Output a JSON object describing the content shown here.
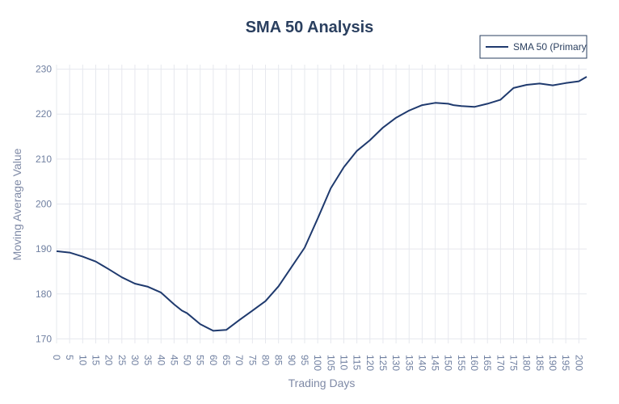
{
  "chart_data": {
    "type": "line",
    "title": "SMA 50 Analysis",
    "xlabel": "Trading Days",
    "ylabel": "Moving Average Value",
    "xlim": [
      0,
      203
    ],
    "ylim": [
      169,
      231
    ],
    "x_ticks": [
      0,
      5,
      10,
      15,
      20,
      25,
      30,
      35,
      40,
      45,
      50,
      55,
      60,
      65,
      70,
      75,
      80,
      85,
      90,
      95,
      100,
      105,
      110,
      115,
      120,
      125,
      130,
      135,
      140,
      145,
      150,
      155,
      160,
      165,
      170,
      175,
      180,
      185,
      190,
      195,
      200
    ],
    "y_ticks": [
      170,
      180,
      190,
      200,
      210,
      220,
      230
    ],
    "grid": true,
    "legend_position": "top-right",
    "line_color": "#1f3a6e",
    "series": [
      {
        "name": "SMA 50 (Primary",
        "x": [
          0,
          5,
          10,
          15,
          20,
          25,
          30,
          35,
          40,
          45,
          48,
          50,
          55,
          60,
          65,
          70,
          75,
          80,
          85,
          90,
          95,
          100,
          105,
          110,
          115,
          120,
          125,
          130,
          135,
          140,
          145,
          150,
          152,
          155,
          160,
          165,
          170,
          175,
          180,
          185,
          190,
          195,
          200,
          203
        ],
        "y": [
          189.5,
          189.2,
          188.3,
          187.2,
          185.5,
          183.7,
          182.3,
          181.6,
          180.3,
          177.7,
          176.3,
          175.7,
          173.3,
          171.8,
          172.0,
          174.2,
          176.3,
          178.4,
          181.7,
          186.0,
          190.3,
          196.8,
          203.5,
          208.2,
          211.8,
          214.2,
          217.0,
          219.2,
          220.8,
          222.0,
          222.5,
          222.3,
          222.0,
          221.8,
          221.6,
          222.3,
          223.2,
          225.8,
          226.5,
          226.8,
          226.4,
          226.9,
          227.3,
          228.3
        ]
      }
    ]
  }
}
